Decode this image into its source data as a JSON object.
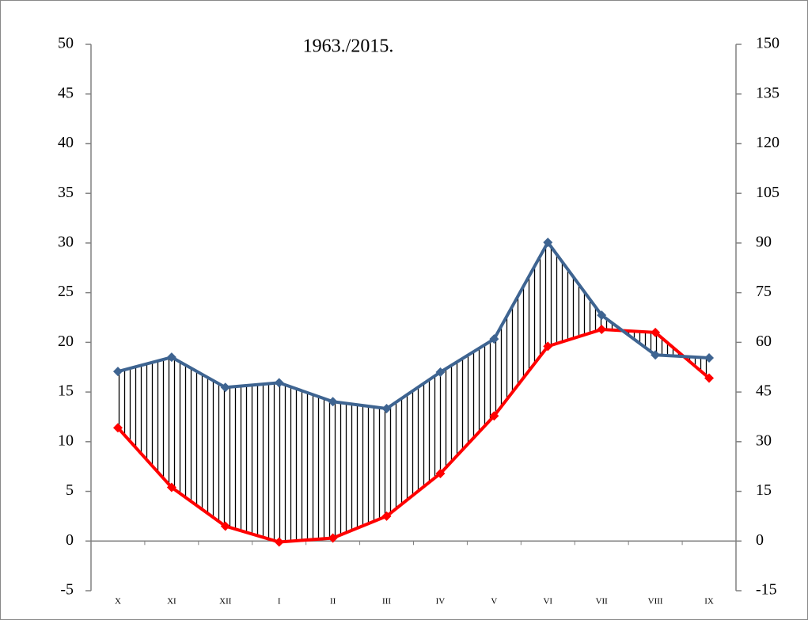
{
  "chart_data": {
    "type": "climate-diagram",
    "title": "1963./2015.",
    "categories": [
      "X",
      "XI",
      "XII",
      "I",
      "II",
      "III",
      "IV",
      "V",
      "VI",
      "VII",
      "VIII",
      "IX"
    ],
    "series": [
      {
        "color": "#ff0000",
        "values": [
          11.4,
          5.4,
          1.5,
          -0.1,
          0.3,
          2.5,
          6.8,
          12.6,
          19.6,
          21.3,
          21.0,
          16.4
        ]
      },
      {
        "color": "#3e6491",
        "axis": "y2",
        "values": [
          51.2,
          55.5,
          46.4,
          47.8,
          42.1,
          40,
          51,
          61,
          90.2,
          68.2,
          56.2,
          55.3
        ]
      }
    ],
    "ylim": [
      -5,
      50
    ],
    "yticks": [
      -5,
      0,
      5,
      10,
      15,
      20,
      25,
      30,
      35,
      40,
      45,
      50
    ],
    "y2lim": [
      -15,
      150
    ],
    "y2ticks": [
      -15,
      0,
      15,
      30,
      45,
      60,
      75,
      90,
      105,
      120,
      135,
      150
    ]
  }
}
